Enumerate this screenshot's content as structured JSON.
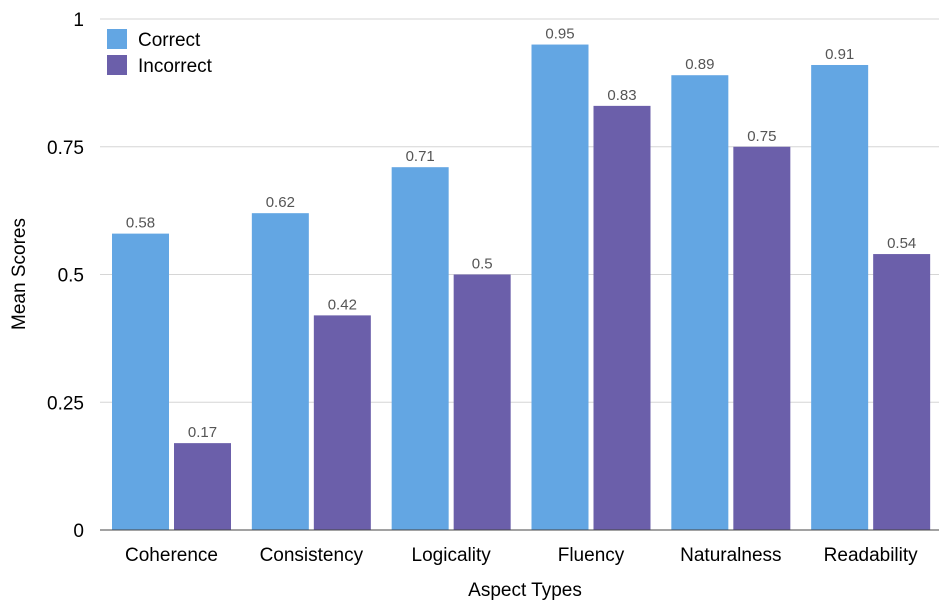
{
  "chart_data": {
    "type": "bar",
    "categories": [
      "Coherence",
      "Consistency",
      "Logicality",
      "Fluency",
      "Naturalness",
      "Readability"
    ],
    "series": [
      {
        "name": "Correct",
        "color": "#63A6E3",
        "values": [
          0.58,
          0.62,
          0.71,
          0.95,
          0.89,
          0.91
        ]
      },
      {
        "name": "Incorrect",
        "color": "#6B5FAA",
        "values": [
          0.17,
          0.42,
          0.5,
          0.83,
          0.75,
          0.54
        ]
      }
    ],
    "title": "",
    "xlabel": "Aspect Types",
    "ylabel": "Mean Scores",
    "ylim": [
      0,
      1
    ],
    "yticks": [
      0,
      0.25,
      0.5,
      0.75,
      1
    ],
    "ytick_labels": [
      "0",
      "0.25",
      "0.5",
      "0.75",
      "1"
    ],
    "grid": "horizontal",
    "legend_position": "top-left",
    "data_labels": true
  }
}
